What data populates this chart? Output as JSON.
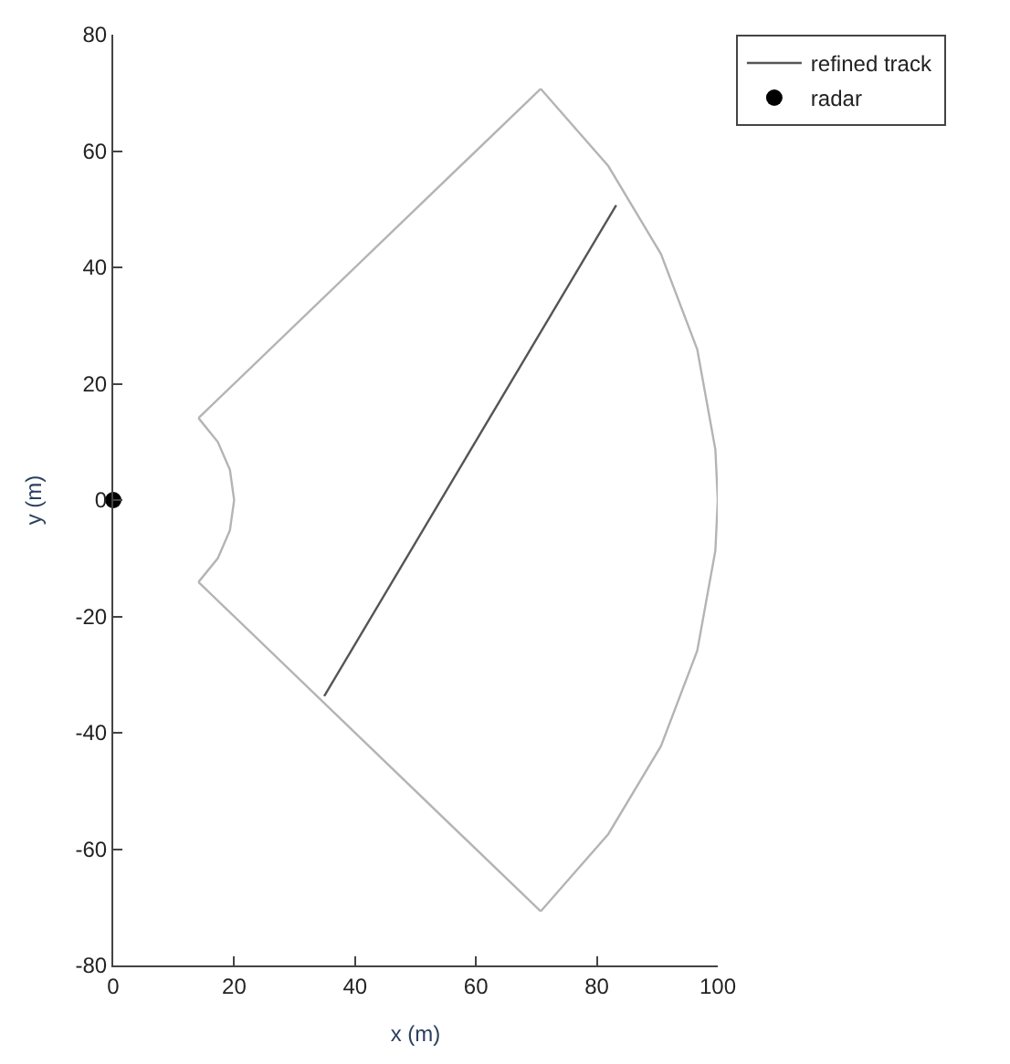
{
  "chart_data": {
    "type": "line",
    "xlabel": "x (m)",
    "ylabel": "y (m)",
    "xlim": [
      0,
      100
    ],
    "xticks": [
      0,
      20,
      40,
      60,
      80,
      100
    ],
    "ylim": [
      -80,
      80
    ],
    "yticks": [
      -80,
      -60,
      -40,
      -20,
      0,
      20,
      40,
      60,
      80
    ],
    "legend": "top right",
    "series": [
      {
        "color": "#b4b4b4",
        "x": [
          14.1,
          17.3,
          19.3,
          20,
          19.3,
          17.3,
          14.1
        ],
        "values": [
          14.1,
          10,
          5.2,
          0,
          -5.2,
          -10,
          -14.1
        ]
      },
      {
        "color": "#b4b4b4",
        "x": [
          14.1,
          70.7
        ],
        "values": [
          -14.1,
          -70.7
        ]
      },
      {
        "color": "#b4b4b4",
        "x": [
          70.7,
          81.9,
          90.6,
          96.6,
          99.6,
          100,
          99.6,
          96.6,
          90.6,
          81.9,
          70.7
        ],
        "values": [
          -70.7,
          -57.4,
          -42.3,
          -25.9,
          -8.7,
          0,
          8.7,
          25.9,
          42.3,
          57.4,
          70.7
        ]
      },
      {
        "color": "#b4b4b4",
        "x": [
          70.7,
          14.1
        ],
        "values": [
          70.7,
          14.1
        ]
      },
      {
        "name": "refined track",
        "color": "#555555",
        "x": [
          34.9,
          83.2
        ],
        "values": [
          -33.7,
          50.7
        ]
      },
      {
        "type": "scatter",
        "name": "radar",
        "color": "#000000",
        "marker": "circle",
        "x": [
          0
        ],
        "values": [
          0
        ]
      }
    ]
  }
}
